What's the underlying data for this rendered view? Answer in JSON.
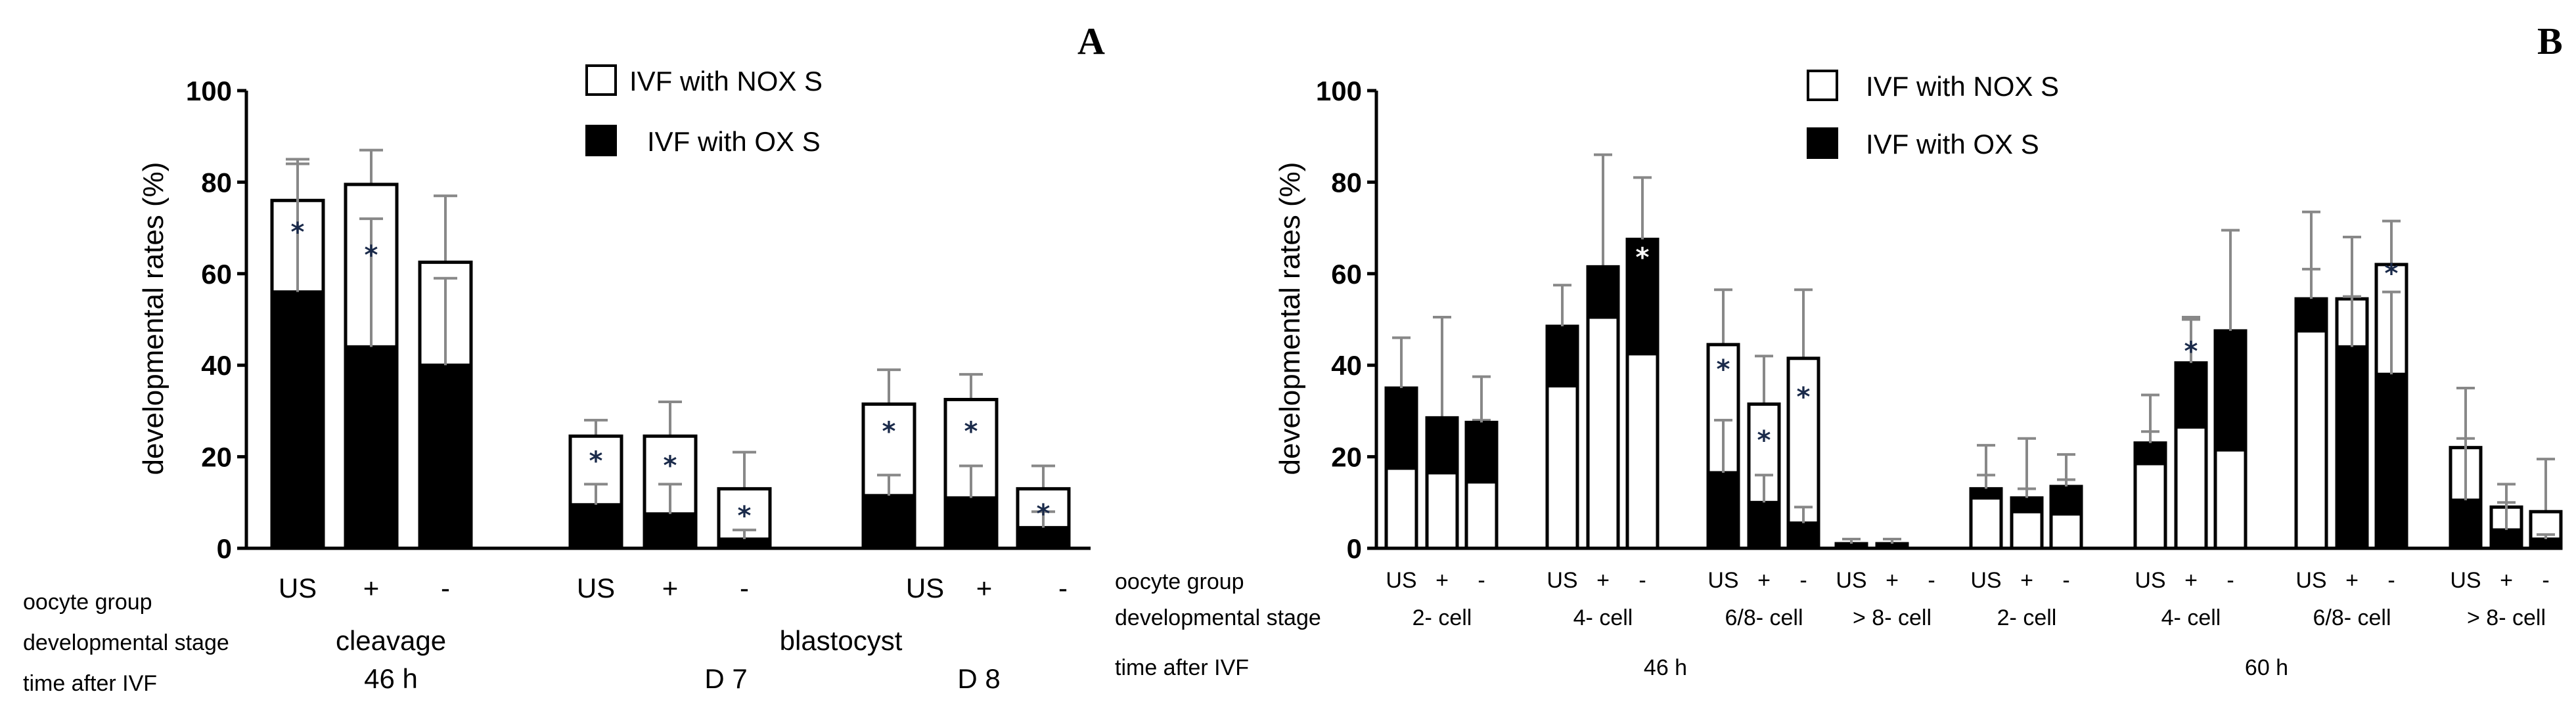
{
  "colors": {
    "nox": "#ffffff",
    "ox": "#000000",
    "error": "#888888",
    "axis": "#000000",
    "star_on_white": "#1a2a4a",
    "star_on_black": "#ffffff"
  },
  "panel_a": {
    "letter": "A",
    "ylabel": "developmental rates (%)",
    "legend_nox": "IVF with NOX S",
    "legend_ox": "IVF with OX S",
    "row_labels": {
      "oocyte": "oocyte group",
      "stage": "developmental stage",
      "time": "time after IVF"
    },
    "stage_labels": [
      "cleavage",
      "blastocyst"
    ],
    "time_labels": [
      "46 h",
      "D 7",
      "D 8"
    ]
  },
  "panel_b": {
    "letter": "B",
    "ylabel": "developmental rates (%)",
    "legend_nox": "IVF with NOX S",
    "legend_ox": "IVF with OX S",
    "row_labels": {
      "oocyte": "oocyte group",
      "stage": "developmental stage",
      "time": "time after IVF"
    },
    "stage_labels": [
      "2- cell",
      "4- cell",
      "6/8- cell",
      "> 8- cell",
      "2- cell",
      "4- cell",
      "6/8- cell",
      "> 8- cell"
    ],
    "time_labels": [
      "46 h",
      "60 h"
    ]
  },
  "chart_data": [
    {
      "type": "bar",
      "panel": "A",
      "title": "A",
      "xlabel": "",
      "ylabel": "developmental rates (%)",
      "ylim": [
        0,
        100
      ],
      "yticks": [
        0,
        20,
        40,
        60,
        80,
        100
      ],
      "legend": [
        "IVF with NOX S",
        "IVF with OX S"
      ],
      "categories": [
        "US",
        "+",
        "-",
        "US",
        "+",
        "-",
        "US",
        "+",
        "-"
      ],
      "groups": [
        {
          "stage": "cleavage",
          "time": "46 h",
          "bars": [
            0,
            1,
            2
          ]
        },
        {
          "stage": "blastocyst",
          "time": "D 7",
          "bars": [
            3,
            4,
            5
          ]
        },
        {
          "stage": "blastocyst",
          "time": "D 8",
          "bars": [
            6,
            7,
            8
          ]
        }
      ],
      "series": [
        {
          "name": "IVF with NOX S",
          "values": [
            76,
            79.5,
            62.5,
            24.5,
            24.5,
            13,
            31.5,
            32.5,
            13
          ],
          "error": [
            85,
            87,
            77,
            28,
            32,
            21,
            39,
            38,
            18
          ]
        },
        {
          "name": "IVF with OX S",
          "values": [
            56,
            44,
            40,
            9.5,
            7.5,
            2,
            11.5,
            11,
            4.5
          ],
          "error_upper": [
            84,
            72,
            59,
            14,
            14,
            4,
            16,
            18,
            8
          ]
        }
      ],
      "significance": [
        {
          "bar": 0,
          "value": 70,
          "label": "*"
        },
        {
          "bar": 1,
          "value": 65,
          "label": "*"
        },
        {
          "bar": 3,
          "value": 20,
          "label": "*"
        },
        {
          "bar": 4,
          "value": 19,
          "label": "*"
        },
        {
          "bar": 5,
          "value": 8,
          "label": "*"
        },
        {
          "bar": 6,
          "value": 26.5,
          "label": "*"
        },
        {
          "bar": 7,
          "value": 26.5,
          "label": "*"
        },
        {
          "bar": 8,
          "value": 8.5,
          "label": "*"
        }
      ]
    },
    {
      "type": "bar",
      "panel": "B",
      "title": "B",
      "xlabel": "",
      "ylabel": "developmental rates (%)",
      "ylim": [
        0,
        100
      ],
      "yticks": [
        0,
        20,
        40,
        60,
        80,
        100
      ],
      "legend": [
        "IVF with NOX S",
        "IVF with OX S"
      ],
      "categories": [
        "US",
        "+",
        "-",
        "US",
        "+",
        "-",
        "US",
        "+",
        "-",
        "US",
        "+",
        "-",
        "US",
        "+",
        "-",
        "US",
        "+",
        "-",
        "US",
        "+",
        "-",
        "US",
        "+",
        "-"
      ],
      "groups": [
        {
          "stage": "2- cell",
          "time": "46 h",
          "bars": [
            0,
            1,
            2
          ]
        },
        {
          "stage": "4- cell",
          "time": "46 h",
          "bars": [
            3,
            4,
            5
          ]
        },
        {
          "stage": "6/8- cell",
          "time": "46 h",
          "bars": [
            6,
            7,
            8
          ]
        },
        {
          "stage": "> 8- cell",
          "time": "46 h",
          "bars": [
            9,
            10,
            11
          ]
        },
        {
          "stage": "2- cell",
          "time": "60 h",
          "bars": [
            12,
            13,
            14
          ]
        },
        {
          "stage": "4- cell",
          "time": "60 h",
          "bars": [
            15,
            16,
            17
          ]
        },
        {
          "stage": "6/8- cell",
          "time": "60 h",
          "bars": [
            18,
            19,
            20
          ]
        },
        {
          "stage": "> 8- cell",
          "time": "60 h",
          "bars": [
            21,
            22,
            23
          ]
        }
      ],
      "series": [
        {
          "name": "IVF with NOX S",
          "values": [
            17.5,
            16.5,
            14.5,
            35.5,
            50.5,
            42.5,
            44.5,
            31.5,
            41.5,
            0,
            0,
            0,
            11,
            8,
            7.5,
            18.5,
            26.5,
            21.5,
            47.5,
            54.5,
            62,
            22,
            9,
            8
          ],
          "error": [
            31,
            50.5,
            28,
            48.5,
            86,
            53.5,
            56.5,
            42,
            56.5,
            0,
            0,
            0,
            22.5,
            24,
            20.5,
            33.5,
            50.5,
            34,
            73.5,
            68,
            71.5,
            35,
            14,
            19.5
          ]
        },
        {
          "name": "IVF with OX S",
          "values": [
            35,
            28.5,
            27.5,
            48.5,
            61.5,
            67.5,
            16.5,
            10,
            5.5,
            1,
            1,
            0,
            13,
            11,
            13.5,
            23,
            40.5,
            47.5,
            54.5,
            44,
            38,
            10.5,
            4,
            2
          ],
          "error_upper": [
            46,
            27,
            37.5,
            57.5,
            61.5,
            81,
            28,
            16,
            9,
            2,
            2,
            0,
            16,
            13,
            15,
            25.5,
            50,
            69.5,
            61,
            55,
            56,
            24,
            10,
            3
          ]
        }
      ],
      "significance": [
        {
          "bar": 5,
          "value": 64.5,
          "label": "*"
        },
        {
          "bar": 6,
          "value": 40,
          "label": "*"
        },
        {
          "bar": 7,
          "value": 24.5,
          "label": "*"
        },
        {
          "bar": 8,
          "value": 34,
          "label": "*"
        },
        {
          "bar": 16,
          "value": 44,
          "label": "*"
        },
        {
          "bar": 20,
          "value": 61,
          "label": "*"
        }
      ]
    }
  ]
}
